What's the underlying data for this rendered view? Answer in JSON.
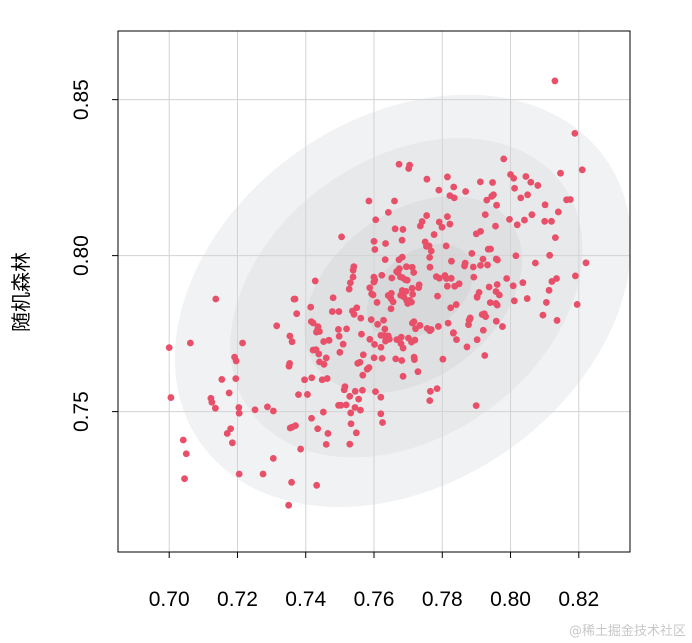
{
  "chart_data": {
    "type": "scatter",
    "title": "",
    "xlabel": "",
    "ylabel": "随机森林",
    "xlim": [
      0.685,
      0.835
    ],
    "ylim": [
      0.705,
      0.872
    ],
    "x_ticks": [
      0.7,
      0.72,
      0.74,
      0.76,
      0.78,
      0.8,
      0.82
    ],
    "x_tick_labels": [
      "0.70",
      "0.72",
      "0.74",
      "0.76",
      "0.78",
      "0.80",
      "0.82"
    ],
    "y_ticks": [
      0.75,
      0.8,
      0.85
    ],
    "y_tick_labels": [
      "0.75",
      "0.80",
      "0.85"
    ],
    "grid": true,
    "point_color": "#e8506a",
    "density_colors": [
      "#f1f2f3",
      "#e8e9ea",
      "#dfe0e2",
      "#d7d8da"
    ],
    "density_contours": [
      {
        "level": 1,
        "cx": 0.7685,
        "cy": 0.7855,
        "rx": 0.0725,
        "ry": 0.0585,
        "angle": 35
      },
      {
        "level": 2,
        "cx": 0.7695,
        "cy": 0.7865,
        "rx": 0.0565,
        "ry": 0.0445,
        "angle": 36
      },
      {
        "level": 3,
        "cx": 0.7715,
        "cy": 0.7875,
        "rx": 0.0355,
        "ry": 0.0265,
        "angle": 37
      },
      {
        "level": 4,
        "cx": 0.7735,
        "cy": 0.7885,
        "rx": 0.0175,
        "ry": 0.0125,
        "angle": 37
      }
    ],
    "points_seed": 20240611,
    "points_count": 330,
    "points_center": [
      0.7705,
      0.7855
    ],
    "points_sd": [
      0.0235,
      0.0215
    ],
    "points_correlation": 0.62,
    "points_x_range": [
      0.695,
      0.828
    ],
    "points_y_range": [
      0.715,
      0.84
    ],
    "points": [
      [
        0.7,
        0.7705
      ],
      [
        0.7005,
        0.7545
      ],
      [
        0.7045,
        0.7285
      ],
      [
        0.705,
        0.7365
      ],
      [
        0.7062,
        0.772
      ],
      [
        0.7125,
        0.753
      ],
      [
        0.717,
        0.743
      ],
      [
        0.718,
        0.7445
      ],
      [
        0.7185,
        0.74
      ],
      [
        0.7205,
        0.73
      ],
      [
        0.7205,
        0.7495
      ],
      [
        0.7215,
        0.772
      ],
      [
        0.7275,
        0.73
      ],
      [
        0.7305,
        0.735
      ],
      [
        0.7315,
        0.7775
      ],
      [
        0.735,
        0.72
      ],
      [
        0.736,
        0.745
      ],
      [
        0.737,
        0.7455
      ],
      [
        0.7385,
        0.738
      ],
      [
        0.7405,
        0.7555
      ],
      [
        0.7435,
        0.7445
      ],
      [
        0.746,
        0.7395
      ],
      [
        0.7465,
        0.743
      ],
      [
        0.75,
        0.769
      ],
      [
        0.7505,
        0.806
      ],
      [
        0.7545,
        0.7565
      ],
      [
        0.7555,
        0.754
      ],
      [
        0.7585,
        0.8175
      ],
      [
        0.7605,
        0.8115
      ],
      [
        0.7625,
        0.7465
      ],
      [
        0.766,
        0.8175
      ],
      [
        0.7755,
        0.8245
      ],
      [
        0.7765,
        0.7565
      ],
      [
        0.779,
        0.821
      ],
      [
        0.7815,
        0.8125
      ],
      [
        0.7835,
        0.8185
      ],
      [
        0.795,
        0.8195
      ],
      [
        0.798,
        0.831
      ],
      [
        0.8,
        0.826
      ],
      [
        0.803,
        0.8185
      ],
      [
        0.805,
        0.8195
      ],
      [
        0.808,
        0.8225
      ],
      [
        0.81,
        0.811
      ],
      [
        0.812,
        0.811
      ],
      [
        0.814,
        0.814
      ],
      [
        0.8175,
        0.818
      ],
      [
        0.821,
        0.8275
      ],
      [
        0.813,
        0.856
      ],
      [
        0.819,
        0.7935
      ],
      [
        0.8105,
        0.785
      ]
    ]
  },
  "watermark": "@稀土掘金技术社区"
}
